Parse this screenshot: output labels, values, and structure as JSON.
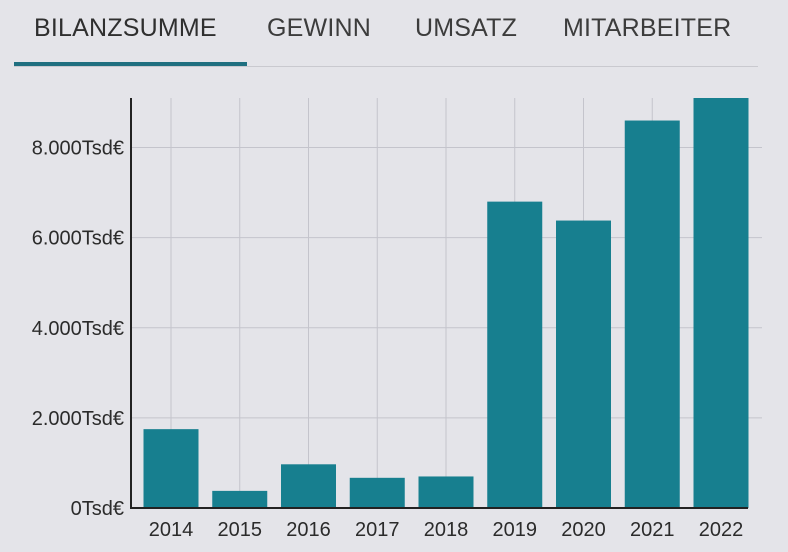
{
  "tabs": [
    {
      "label": "BILANZSUMME",
      "active": true
    },
    {
      "label": "GEWINN",
      "active": false
    },
    {
      "label": "UMSATZ",
      "active": false
    },
    {
      "label": "MITARBEITER",
      "active": false
    }
  ],
  "colors": {
    "bar": "#177f8f",
    "accent": "#1f6f80",
    "background": "#e4e4e9",
    "grid": "#c4c4cc"
  },
  "chart_data": {
    "type": "bar",
    "categories": [
      "2014",
      "2015",
      "2016",
      "2017",
      "2018",
      "2019",
      "2020",
      "2021",
      "2022"
    ],
    "values": [
      1750,
      380,
      970,
      670,
      700,
      6800,
      6380,
      8600,
      9100
    ],
    "y_ticks": [
      {
        "value": 0,
        "label": "0Tsd€"
      },
      {
        "value": 2000,
        "label": "2.000Tsd€"
      },
      {
        "value": 4000,
        "label": "4.000Tsd€"
      },
      {
        "value": 6000,
        "label": "6.000Tsd€"
      },
      {
        "value": 8000,
        "label": "8.000Tsd€"
      }
    ],
    "ylim": [
      0,
      9100
    ],
    "xlabel": "",
    "ylabel": "",
    "title": "",
    "grid": true
  }
}
